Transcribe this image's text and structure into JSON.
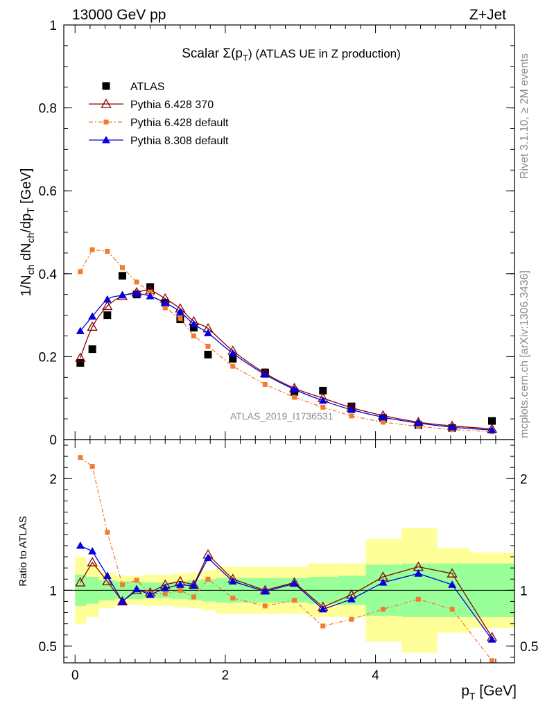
{
  "header": {
    "left": "13000 GeV pp",
    "right": "Z+Jet"
  },
  "side_labels": {
    "top": "Rivet 3.1.10, ≥ 2M events",
    "bottom": "mcplots.cern.ch [arXiv:1306.3436]"
  },
  "watermark": "ATLAS_2019_I1736531",
  "chart_data": [
    {
      "type": "scatter",
      "title": "Scalar Σ(p_T) (ATLAS UE in Z production)",
      "title_parts": {
        "main": "Scalar Σ(p",
        "sub": "T",
        "end": ") (ATLAS UE in Z production)"
      },
      "ylabel_parts": {
        "a": "1/N",
        "a_sub": "ch",
        "b": " dN",
        "b_sub": "ch",
        "c": "/dp",
        "c_sub": "T",
        "d": " [GeV]"
      },
      "xlim": [
        -0.15,
        5.85
      ],
      "ylim": [
        0,
        1.0
      ],
      "yticks": [
        0,
        0.2,
        0.4,
        0.6,
        0.8,
        1
      ],
      "ytick_labels": [
        "0",
        "0.2",
        "0.4",
        "0.6",
        "0.8",
        "1"
      ],
      "x": [
        0.07,
        0.23,
        0.43,
        0.63,
        0.82,
        1.0,
        1.2,
        1.4,
        1.58,
        1.77,
        2.1,
        2.53,
        2.92,
        3.3,
        3.68,
        4.1,
        4.57,
        5.02,
        5.55
      ],
      "legend": [
        {
          "label": "ATLAS",
          "series": "ATLAS"
        },
        {
          "label": "Pythia 6.428 370",
          "series": "P6370"
        },
        {
          "label": "Pythia 6.428 default",
          "series": "P6def"
        },
        {
          "label": "Pythia 8.308 default",
          "series": "P8"
        }
      ],
      "series": [
        {
          "key": "ATLAS",
          "name": "ATLAS",
          "color": "#000000",
          "marker": "square",
          "values": [
            0.185,
            0.218,
            0.3,
            0.395,
            0.35,
            0.368,
            0.33,
            0.29,
            0.27,
            0.205,
            0.195,
            0.162,
            0.115,
            0.118,
            0.08,
            0.052,
            0.035,
            0.028,
            0.045
          ]
        },
        {
          "key": "P6370",
          "name": "Pythia 6.428 370",
          "color": "#8b0000",
          "marker": "open-triangle",
          "values": [
            0.197,
            0.272,
            0.322,
            0.346,
            0.355,
            0.36,
            0.34,
            0.316,
            0.285,
            0.268,
            0.214,
            0.16,
            0.124,
            0.1,
            0.077,
            0.058,
            0.042,
            0.033,
            0.026
          ]
        },
        {
          "key": "P6def",
          "name": "Pythia 6.428 default",
          "color": "#f47a30",
          "marker": "small-square",
          "values": [
            0.405,
            0.458,
            0.454,
            0.415,
            0.38,
            0.356,
            0.318,
            0.292,
            0.25,
            0.225,
            0.177,
            0.133,
            0.102,
            0.078,
            0.057,
            0.042,
            0.032,
            0.024,
            0.019
          ]
        },
        {
          "key": "P8",
          "name": "Pythia 8.308 default",
          "color": "#0000e0",
          "marker": "triangle",
          "values": [
            0.262,
            0.297,
            0.338,
            0.348,
            0.352,
            0.346,
            0.33,
            0.308,
            0.278,
            0.257,
            0.208,
            0.157,
            0.121,
            0.094,
            0.072,
            0.054,
            0.04,
            0.03,
            0.023
          ]
        }
      ]
    },
    {
      "type": "line",
      "ylabel": "Ratio to ATLAS",
      "xlabel_parts": {
        "main": "p",
        "sub": "T",
        "end": " [GeV]"
      },
      "xlim": [
        -0.15,
        5.85
      ],
      "ylim": [
        0.35,
        2.35
      ],
      "xticks": [
        0,
        2,
        4
      ],
      "xtick_labels": [
        "0",
        "2",
        "4"
      ],
      "yticks": [
        0.5,
        1,
        2
      ],
      "ytick_labels": [
        "0.5",
        "1",
        "2"
      ],
      "ratio_line": 1,
      "bin_edges": [
        0.0,
        0.15,
        0.32,
        0.53,
        0.72,
        0.91,
        1.1,
        1.3,
        1.5,
        1.68,
        1.88,
        2.32,
        2.75,
        3.1,
        3.5,
        3.87,
        4.35,
        4.82,
        5.25,
        5.85
      ],
      "band_green": {
        "lo": [
          0.86,
          0.88,
          0.91,
          0.92,
          0.92,
          0.93,
          0.93,
          0.92,
          0.91,
          0.9,
          0.89,
          0.89,
          0.89,
          0.88,
          0.87,
          0.77,
          0.76,
          0.76,
          0.76
        ],
        "hi": [
          1.14,
          1.12,
          1.09,
          1.08,
          1.08,
          1.07,
          1.07,
          1.08,
          1.09,
          1.1,
          1.11,
          1.11,
          1.11,
          1.12,
          1.13,
          1.23,
          1.24,
          1.24,
          1.24
        ]
      },
      "band_yellow": {
        "lo": [
          0.7,
          0.76,
          0.84,
          0.87,
          0.87,
          0.86,
          0.86,
          0.85,
          0.84,
          0.82,
          0.79,
          0.79,
          0.79,
          0.76,
          0.76,
          0.54,
          0.44,
          0.62,
          0.66
        ],
        "hi": [
          1.3,
          1.24,
          1.16,
          1.13,
          1.13,
          1.14,
          1.14,
          1.15,
          1.16,
          1.18,
          1.21,
          1.21,
          1.21,
          1.24,
          1.24,
          1.46,
          1.56,
          1.38,
          1.34
        ]
      },
      "x": [
        0.07,
        0.23,
        0.43,
        0.63,
        0.82,
        1.0,
        1.2,
        1.4,
        1.58,
        1.77,
        2.1,
        2.53,
        2.92,
        3.3,
        3.68,
        4.1,
        4.57,
        5.02,
        5.55
      ],
      "series": [
        {
          "key": "P6370",
          "name": "Pythia 6.428 370",
          "color": "#8b0000",
          "marker": "open-triangle",
          "values": [
            1.07,
            1.25,
            1.08,
            0.9,
            1.0,
            0.98,
            1.05,
            1.08,
            1.05,
            1.32,
            1.1,
            1.0,
            1.07,
            0.85,
            0.96,
            1.12,
            1.21,
            1.15,
            0.58
          ]
        },
        {
          "key": "P6def",
          "name": "Pythia 6.428 default",
          "color": "#f47a30",
          "marker": "small-square",
          "values": [
            2.19,
            2.11,
            1.52,
            1.05,
            1.09,
            0.97,
            0.97,
            1.0,
            0.94,
            1.1,
            0.93,
            0.86,
            0.91,
            0.68,
            0.74,
            0.83,
            0.92,
            0.83,
            0.37
          ]
        },
        {
          "key": "P8",
          "name": "Pythia 8.308 default",
          "color": "#0000e0",
          "marker": "triangle",
          "values": [
            1.4,
            1.35,
            1.13,
            0.9,
            1.01,
            0.96,
            1.02,
            1.05,
            1.04,
            1.29,
            1.08,
            0.99,
            1.06,
            0.83,
            0.92,
            1.07,
            1.15,
            1.05,
            0.56
          ]
        }
      ]
    }
  ]
}
